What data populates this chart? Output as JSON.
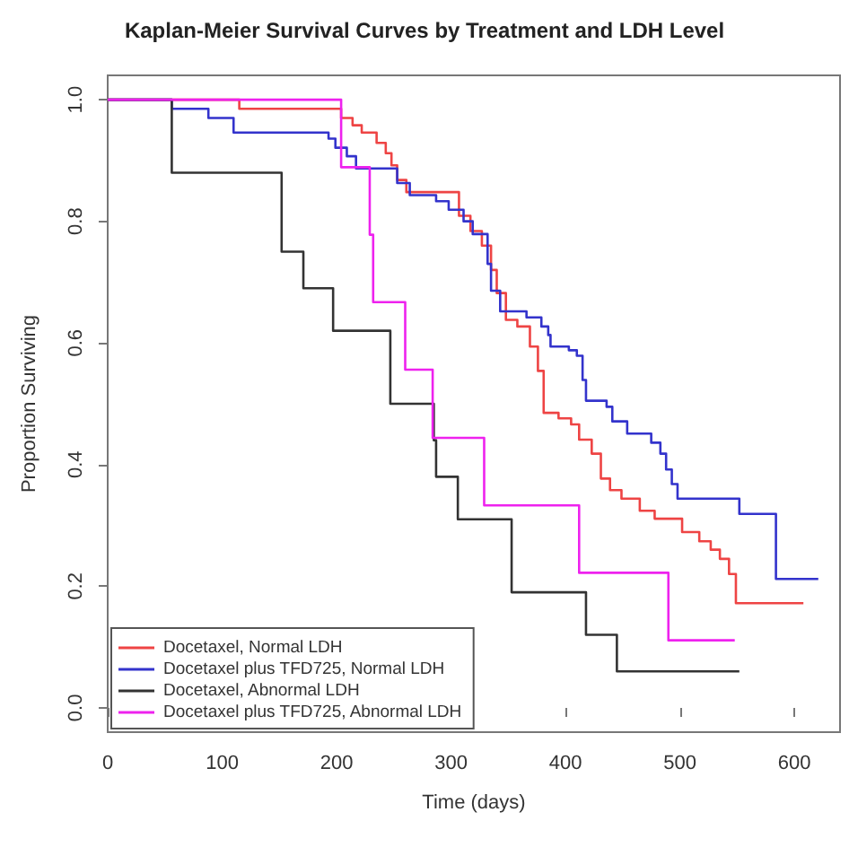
{
  "chart_data": {
    "type": "step",
    "title": "Kaplan-Meier Survival Curves by Treatment and LDH Level",
    "xlabel": "Time (days)",
    "ylabel": "Proportion Surviving",
    "xlim": [
      0,
      640
    ],
    "xticks": [
      0,
      100,
      200,
      300,
      400,
      500,
      600
    ],
    "ylim": [
      -0.04,
      1.04
    ],
    "yticks": [
      {
        "value": 0,
        "label": "0.0"
      },
      {
        "value": 0.2,
        "label": "0.2"
      },
      {
        "value": 0.4,
        "label": "0.4"
      },
      {
        "value": 0.6,
        "label": "0.6"
      },
      {
        "value": 0.8,
        "label": "0.8"
      },
      {
        "value": 1,
        "label": "1.0"
      }
    ],
    "grid": false,
    "legend": "bottom left",
    "line_style": "solid",
    "marker": "none",
    "series": [
      {
        "name": "Docetaxel, Normal LDH",
        "color": "#ee4444",
        "x": [
          0,
          115,
          204,
          214,
          222,
          235,
          243,
          248,
          253,
          261,
          307,
          317,
          327,
          335,
          340,
          348,
          358,
          369,
          376,
          381,
          394,
          405,
          412,
          423,
          431,
          439,
          449,
          465,
          478,
          502,
          517,
          527,
          535,
          543,
          549,
          608
        ],
        "values": [
          1,
          0.985,
          0.97,
          0.958,
          0.946,
          0.929,
          0.912,
          0.892,
          0.868,
          0.848,
          0.809,
          0.784,
          0.76,
          0.72,
          0.682,
          0.638,
          0.627,
          0.594,
          0.554,
          0.485,
          0.476,
          0.466,
          0.441,
          0.418,
          0.377,
          0.358,
          0.344,
          0.324,
          0.311,
          0.289,
          0.274,
          0.26,
          0.245,
          0.22,
          0.172,
          0.172
        ]
      },
      {
        "name": "Docetaxel plus TFD725, Normal LDH",
        "color": "#3333cc",
        "x": [
          0,
          56,
          88,
          110,
          193,
          199,
          209,
          217,
          253,
          264,
          287,
          298,
          311,
          319,
          332,
          335,
          343,
          366,
          379,
          385,
          387,
          403,
          410,
          415,
          418,
          436,
          441,
          454,
          475,
          483,
          488,
          493,
          498,
          552,
          584,
          621
        ],
        "values": [
          1,
          0.985,
          0.97,
          0.946,
          0.936,
          0.921,
          0.907,
          0.887,
          0.863,
          0.843,
          0.833,
          0.819,
          0.8,
          0.779,
          0.73,
          0.686,
          0.652,
          0.642,
          0.627,
          0.613,
          0.594,
          0.588,
          0.579,
          0.539,
          0.505,
          0.495,
          0.471,
          0.451,
          0.436,
          0.418,
          0.392,
          0.368,
          0.344,
          0.319,
          0.212,
          0.212
        ]
      },
      {
        "name": "Docetaxel, Abnormal LDH",
        "color": "#333333",
        "x": [
          0,
          56,
          152,
          171,
          197,
          247,
          285,
          287,
          306,
          353,
          418,
          445,
          552
        ],
        "values": [
          1,
          0.88,
          0.75,
          0.69,
          0.62,
          0.5,
          0.44,
          0.38,
          0.31,
          0.19,
          0.12,
          0.06,
          0.06
        ]
      },
      {
        "name": "Docetaxel plus TFD725, Abnormal LDH",
        "color": "#ee22ee",
        "x": [
          0,
          204,
          229,
          232,
          260,
          284,
          329,
          412,
          490,
          548
        ],
        "values": [
          1,
          0.889,
          0.778,
          0.667,
          0.556,
          0.444,
          0.333,
          0.222,
          0.111,
          0.111
        ]
      }
    ]
  }
}
